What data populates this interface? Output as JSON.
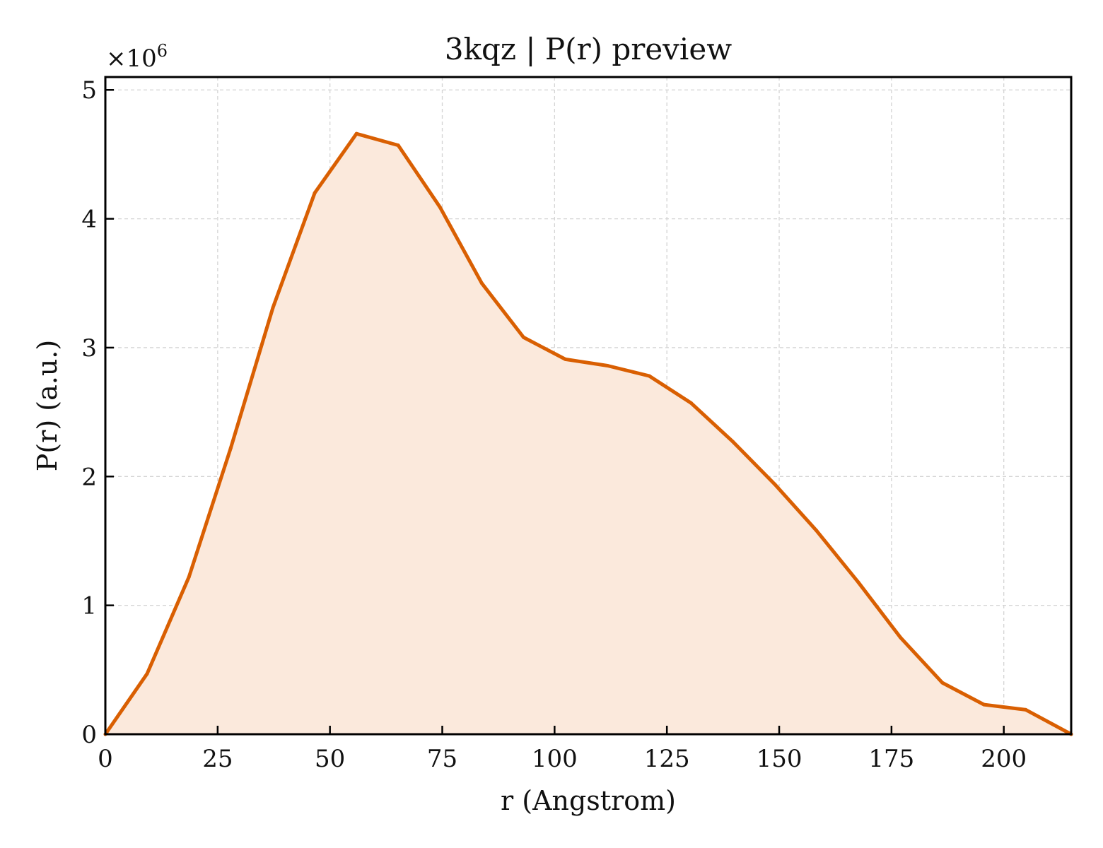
{
  "chart_data": {
    "type": "area",
    "title": "3kqz | P(r) preview",
    "xlabel": "r (Angstrom)",
    "ylabel": "P(r) (a.u.)",
    "y_multiplier": {
      "base": "×10",
      "exponent": "6"
    },
    "xlim": [
      0,
      215
    ],
    "ylim": [
      0,
      5.1
    ],
    "x_ticks": [
      0,
      25,
      50,
      75,
      100,
      125,
      150,
      175,
      200
    ],
    "y_ticks": [
      0,
      1,
      2,
      3,
      4,
      5
    ],
    "grid": true,
    "colors": {
      "line": "#d95f02",
      "fill": "#fbe9dc"
    },
    "series": [
      {
        "x": [
          0,
          9.3,
          18.6,
          27.9,
          37.3,
          46.6,
          55.9,
          65.2,
          74.5,
          83.8,
          93.1,
          102.4,
          111.8,
          121.1,
          130.4,
          139.7,
          149.0,
          158.3,
          167.6,
          177.0,
          186.3,
          195.6,
          204.9,
          215.0
        ],
        "y": [
          0,
          0.47,
          1.22,
          2.22,
          3.31,
          4.2,
          4.66,
          4.57,
          4.09,
          3.5,
          3.08,
          2.91,
          2.86,
          2.78,
          2.57,
          2.27,
          1.94,
          1.58,
          1.18,
          0.75,
          0.4,
          0.23,
          0.19,
          0
        ]
      }
    ]
  }
}
